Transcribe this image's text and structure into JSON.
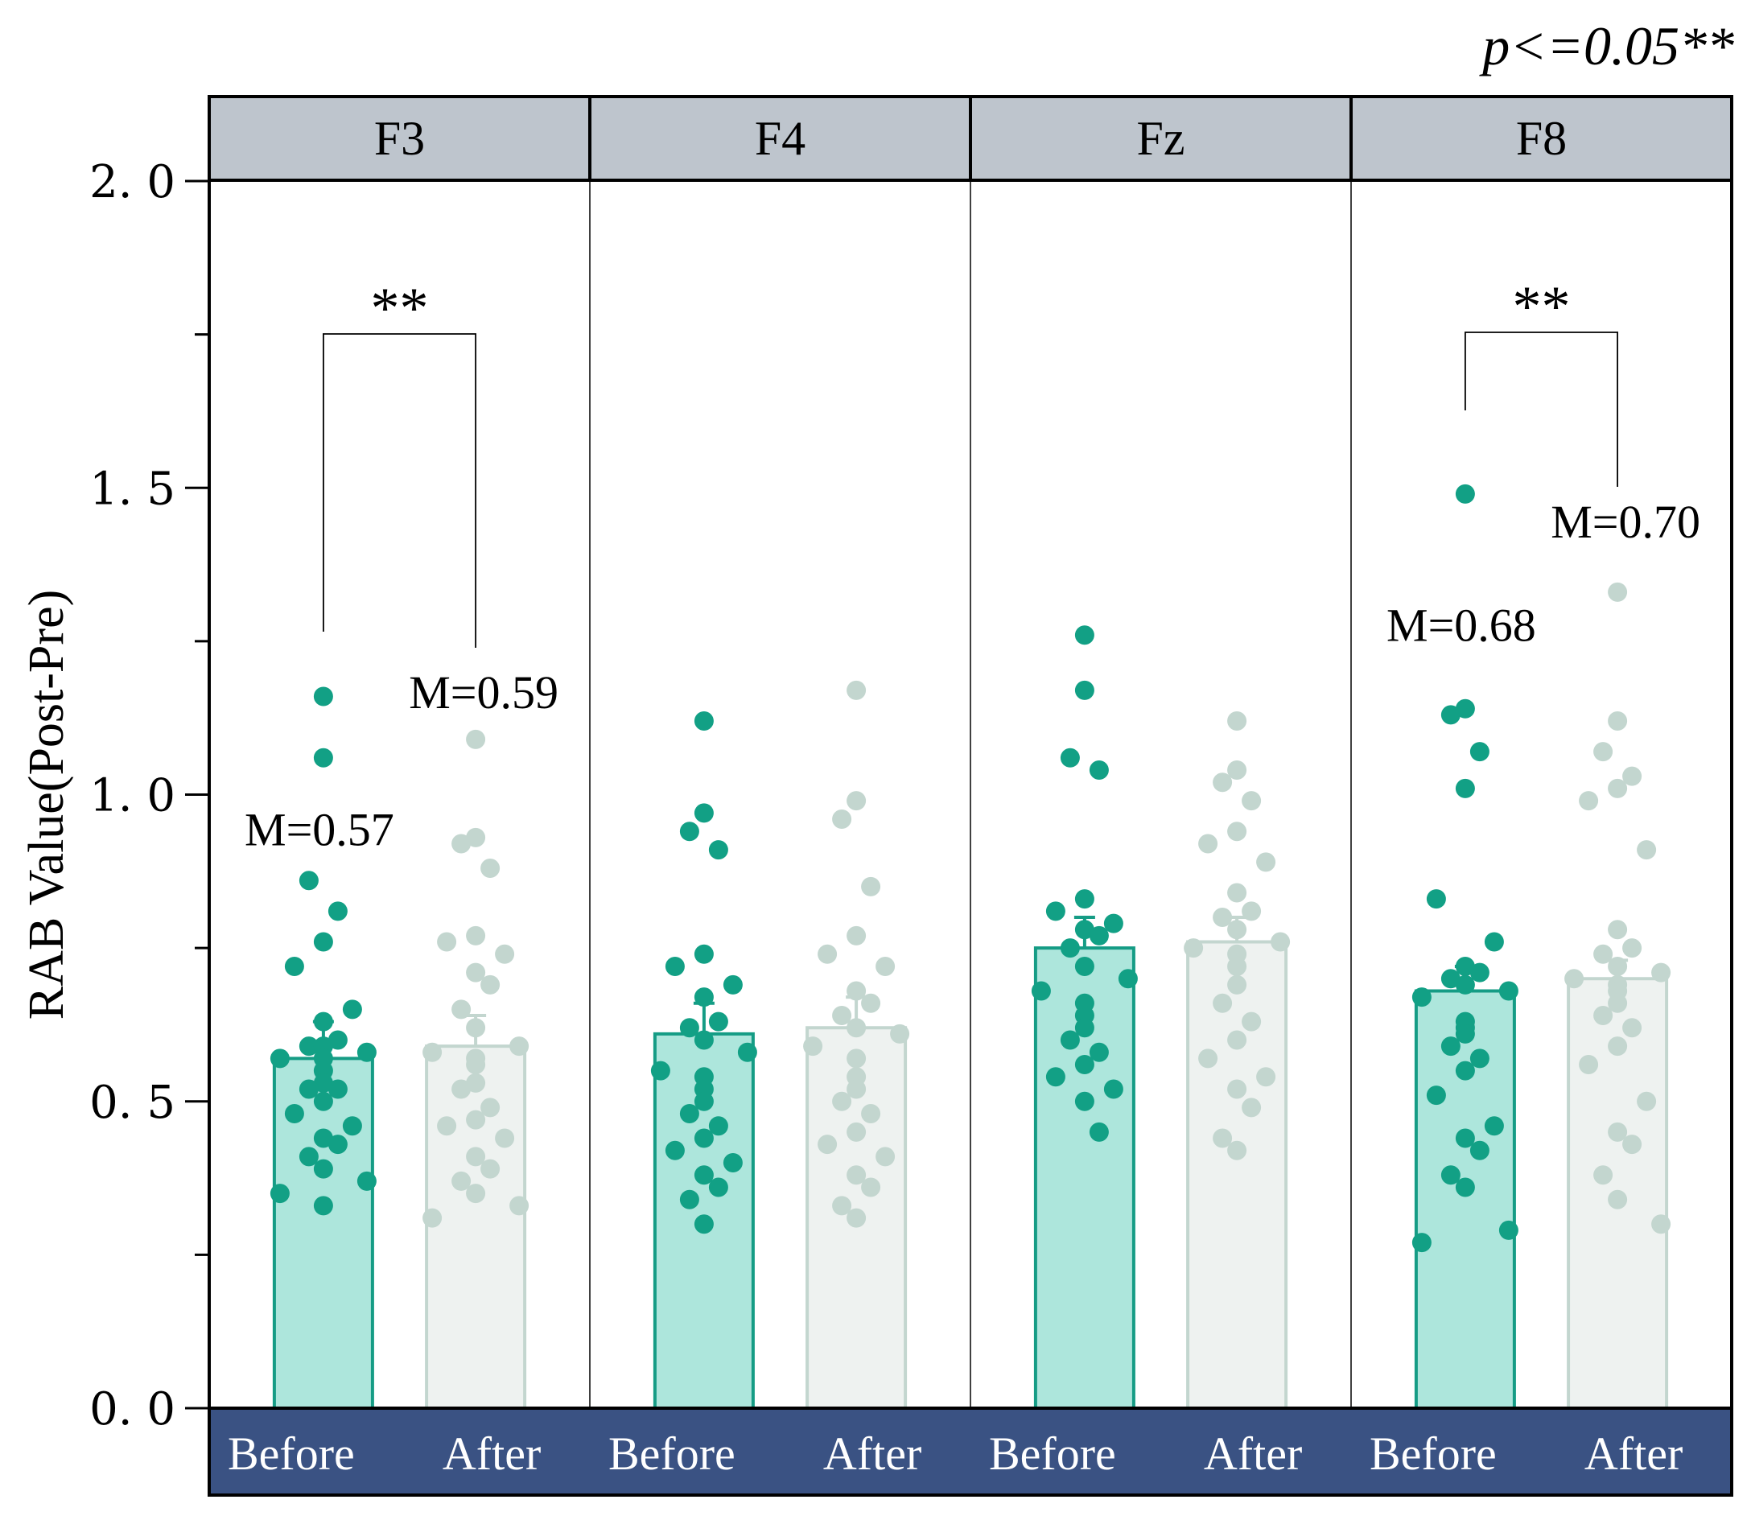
{
  "chart_data": {
    "type": "bar",
    "significance_note": "p<=0.05**",
    "ylabel": "RAB Value(Post-Pre)",
    "ylim": [
      0.0,
      2.0
    ],
    "yticks": [
      "0. 0",
      "0. 5",
      "1. 0",
      "1. 5",
      "2. 0"
    ],
    "colors": {
      "before_bar": "#ade6dc",
      "before_edge": "#159c85",
      "before_dot": "#12a085",
      "after_bar": "#eef2f0",
      "after_edge": "#c3d6cf",
      "after_dot": "#c3d6cf",
      "panel_header": "#bec5cd",
      "footer": "#3a5283",
      "footer_text": "#ffffff"
    },
    "panels": [
      {
        "name": "F3",
        "significance": "**",
        "before": {
          "label": "Before",
          "mean": 0.57,
          "err": 0.06,
          "annotation": "M=0.57",
          "points": [
            1.16,
            1.06,
            0.86,
            0.81,
            0.76,
            0.72,
            0.65,
            0.63,
            0.6,
            0.59,
            0.59,
            0.58,
            0.57,
            0.57,
            0.55,
            0.53,
            0.52,
            0.52,
            0.5,
            0.48,
            0.46,
            0.44,
            0.43,
            0.41,
            0.39,
            0.37,
            0.35,
            0.33
          ]
        },
        "after": {
          "label": "After",
          "mean": 0.59,
          "err": 0.05,
          "annotation": "M=0.59",
          "points": [
            1.09,
            0.93,
            0.92,
            0.88,
            0.77,
            0.76,
            0.74,
            0.71,
            0.69,
            0.65,
            0.62,
            0.59,
            0.58,
            0.57,
            0.56,
            0.53,
            0.52,
            0.49,
            0.47,
            0.46,
            0.44,
            0.41,
            0.39,
            0.37,
            0.35,
            0.33,
            0.31
          ]
        }
      },
      {
        "name": "F4",
        "significance": "",
        "before": {
          "label": "Before",
          "mean": 0.61,
          "err": 0.05,
          "annotation": "",
          "points": [
            1.12,
            0.97,
            0.94,
            0.91,
            0.74,
            0.72,
            0.69,
            0.67,
            0.63,
            0.62,
            0.6,
            0.58,
            0.55,
            0.54,
            0.52,
            0.5,
            0.48,
            0.46,
            0.44,
            0.42,
            0.4,
            0.38,
            0.36,
            0.34,
            0.3
          ]
        },
        "after": {
          "label": "After",
          "mean": 0.62,
          "err": 0.05,
          "annotation": "",
          "points": [
            1.17,
            0.99,
            0.96,
            0.85,
            0.77,
            0.74,
            0.72,
            0.68,
            0.66,
            0.64,
            0.62,
            0.61,
            0.59,
            0.57,
            0.54,
            0.52,
            0.5,
            0.48,
            0.45,
            0.43,
            0.41,
            0.38,
            0.36,
            0.33,
            0.31
          ]
        }
      },
      {
        "name": "Fz",
        "significance": "",
        "before": {
          "label": "Before",
          "mean": 0.75,
          "err": 0.05,
          "annotation": "",
          "points": [
            1.26,
            1.17,
            1.06,
            1.04,
            0.83,
            0.81,
            0.79,
            0.78,
            0.77,
            0.75,
            0.72,
            0.7,
            0.68,
            0.66,
            0.64,
            0.62,
            0.6,
            0.58,
            0.56,
            0.54,
            0.52,
            0.5,
            0.45
          ]
        },
        "after": {
          "label": "After",
          "mean": 0.76,
          "err": 0.04,
          "annotation": "",
          "points": [
            1.12,
            1.04,
            1.02,
            0.99,
            0.94,
            0.92,
            0.89,
            0.84,
            0.81,
            0.8,
            0.78,
            0.76,
            0.75,
            0.74,
            0.72,
            0.69,
            0.66,
            0.63,
            0.6,
            0.57,
            0.54,
            0.52,
            0.49,
            0.44,
            0.42
          ]
        }
      },
      {
        "name": "F8",
        "significance": "**",
        "before": {
          "label": "Before",
          "mean": 0.68,
          "err": 0.04,
          "annotation": "M=0.68",
          "points": [
            1.49,
            1.14,
            1.13,
            1.07,
            1.01,
            0.83,
            0.76,
            0.72,
            0.71,
            0.7,
            0.69,
            0.68,
            0.67,
            0.63,
            0.62,
            0.61,
            0.59,
            0.57,
            0.55,
            0.51,
            0.46,
            0.44,
            0.42,
            0.38,
            0.36,
            0.29,
            0.27
          ]
        },
        "after": {
          "label": "After",
          "mean": 0.7,
          "err": 0.03,
          "annotation": "M=0.70",
          "points": [
            1.33,
            1.12,
            1.07,
            1.03,
            1.01,
            0.99,
            0.91,
            0.78,
            0.75,
            0.74,
            0.72,
            0.71,
            0.7,
            0.69,
            0.68,
            0.66,
            0.64,
            0.62,
            0.59,
            0.56,
            0.5,
            0.45,
            0.43,
            0.38,
            0.34,
            0.3
          ]
        }
      }
    ]
  }
}
